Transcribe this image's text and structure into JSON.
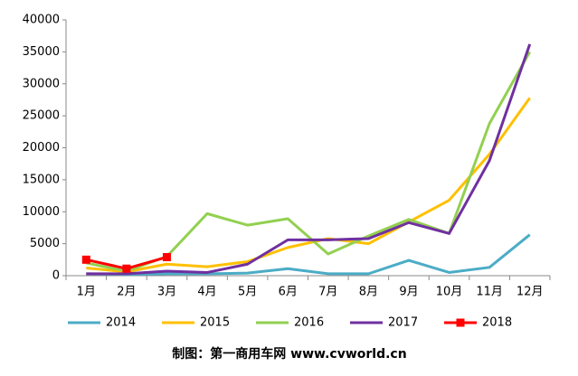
{
  "chart_data": {
    "type": "line",
    "categories": [
      "1月",
      "2月",
      "3月",
      "4月",
      "5月",
      "6月",
      "7月",
      "8月",
      "9月",
      "10月",
      "11月",
      "12月"
    ],
    "series": [
      {
        "name": "2014",
        "color": "#4bacc6",
        "values": [
          300,
          200,
          300,
          300,
          400,
          1100,
          300,
          300,
          2400,
          500,
          1300,
          6400
        ]
      },
      {
        "name": "2015",
        "color": "#ffc000",
        "values": [
          1200,
          600,
          1800,
          1400,
          2200,
          4400,
          5800,
          5000,
          8400,
          11800,
          19000,
          27800
        ]
      },
      {
        "name": "2016",
        "color": "#92d050",
        "values": [
          2000,
          700,
          3000,
          9700,
          7900,
          8900,
          3400,
          6200,
          8800,
          6600,
          23800,
          35000
        ]
      },
      {
        "name": "2017",
        "color": "#7030a0",
        "values": [
          300,
          300,
          700,
          500,
          1800,
          5600,
          5600,
          5800,
          8300,
          6600,
          18000,
          36200
        ]
      },
      {
        "name": "2018",
        "color": "#ff0000",
        "marker": "square",
        "values": [
          2500,
          1100,
          2900,
          null,
          null,
          null,
          null,
          null,
          null,
          null,
          null,
          null
        ]
      }
    ],
    "ylim": [
      0,
      40000
    ],
    "yticks": [
      0,
      5000,
      10000,
      15000,
      20000,
      25000,
      30000,
      35000,
      40000
    ],
    "legend": "bottom",
    "caption": "制图：第一商用车网 www.cvworld.cn"
  }
}
